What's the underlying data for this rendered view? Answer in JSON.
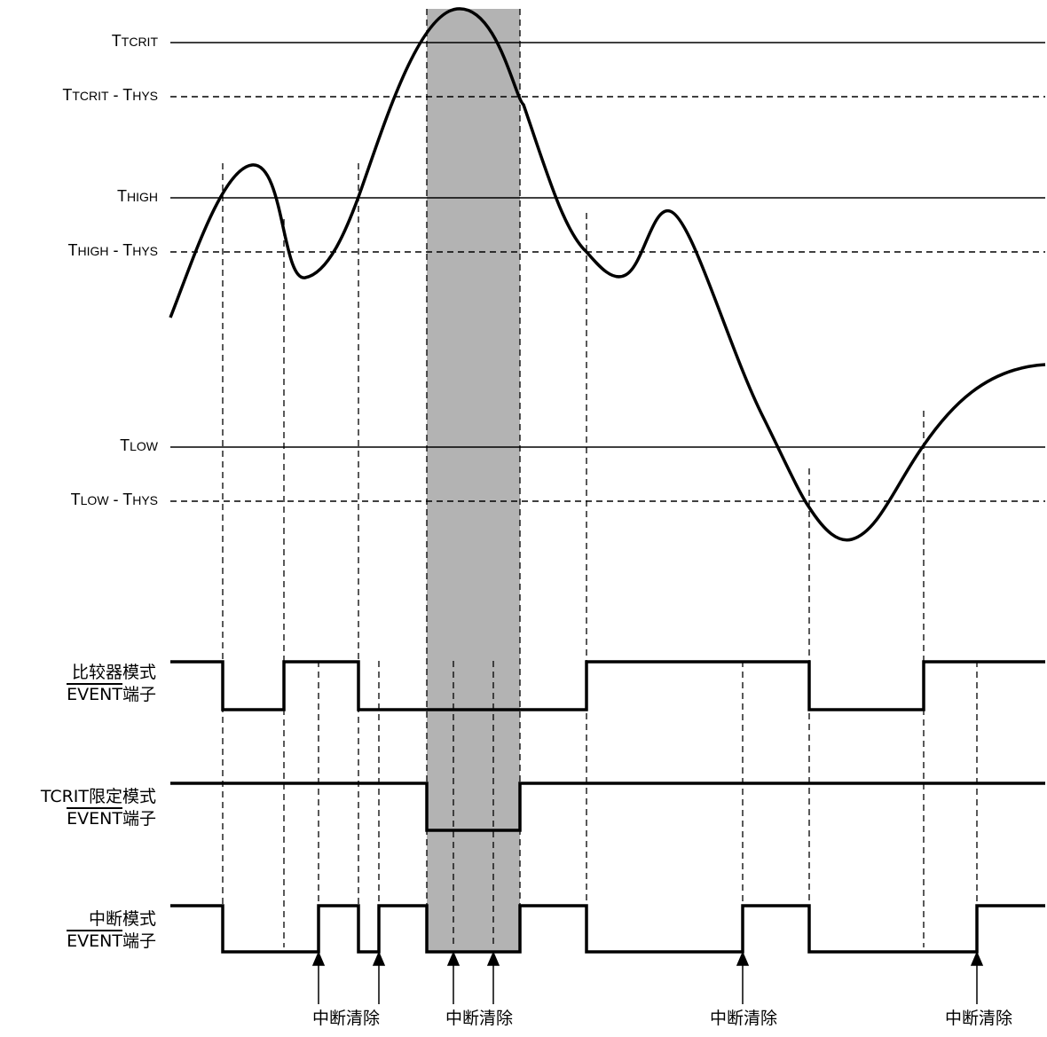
{
  "thresholds": {
    "tcrit": {
      "t": "T",
      "sub": "TCRIT"
    },
    "tcrit_hys": {
      "t1": "T",
      "s1": "TCRIT",
      "mid": " - ",
      "t2": "T",
      "s2": "HYS"
    },
    "high": {
      "t": "T",
      "sub": "HIGH"
    },
    "high_hys": {
      "t1": "T",
      "s1": "HIGH",
      "mid": " - ",
      "t2": "T",
      "s2": "HYS"
    },
    "low": {
      "t": "T",
      "sub": "LOW"
    },
    "low_hys": {
      "t1": "T",
      "s1": "LOW",
      "mid": " - ",
      "t2": "T",
      "s2": "HYS"
    }
  },
  "signals": {
    "comparator": {
      "line1": "比较器模式",
      "pin": "EVENT",
      "suffix": "端子"
    },
    "tcrit_only": {
      "line1": "TCRIT限定模式",
      "pin": "EVENT",
      "suffix": "端子"
    },
    "interrupt": {
      "line1": "中断模式",
      "pin": "EVENT",
      "suffix": "端子"
    }
  },
  "clear_label": "中断清除",
  "colors": {
    "shade": "#b3b3b3",
    "line": "#000000"
  }
}
